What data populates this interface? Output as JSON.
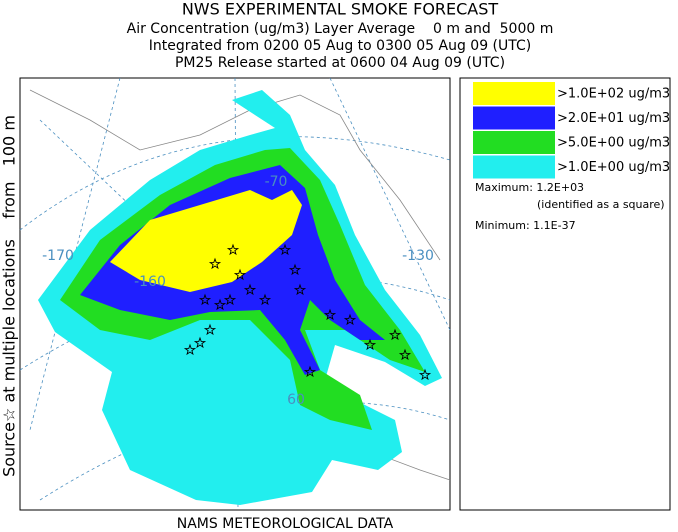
{
  "header": {
    "title": "NWS EXPERIMENTAL SMOKE FORECAST",
    "lines": [
      "Air Concentration (ug/m3) Layer Average    0 m and  5000 m",
      "Integrated from 0200 05 Aug to 0300 05 Aug 09 (UTC)",
      "PM25 Release started at 0600 04 Aug 09 (UTC)"
    ]
  },
  "side_label": "Source☆ at multiple locations    from   100 m",
  "footer": "NAMS METEOROLOGICAL DATA",
  "map": {
    "graticule_labels": [
      "-170",
      "-160",
      "-130",
      "-70",
      "60"
    ]
  },
  "legend": {
    "entries": [
      {
        "label": ">1.0E+02 ug/m3",
        "color": "#ffff00"
      },
      {
        "label": ">2.0E+01 ug/m3",
        "color": "#1f1fff"
      },
      {
        "label": ">5.0E+00 ug/m3",
        "color": "#22dd22"
      },
      {
        "label": ">1.0E+00 ug/m3",
        "color": "#22eeee"
      }
    ],
    "maximum": "Maximum: 1.2E+03",
    "maximum_note": "(identified as a square)",
    "minimum": "Minimum: 1.1E-37"
  }
}
